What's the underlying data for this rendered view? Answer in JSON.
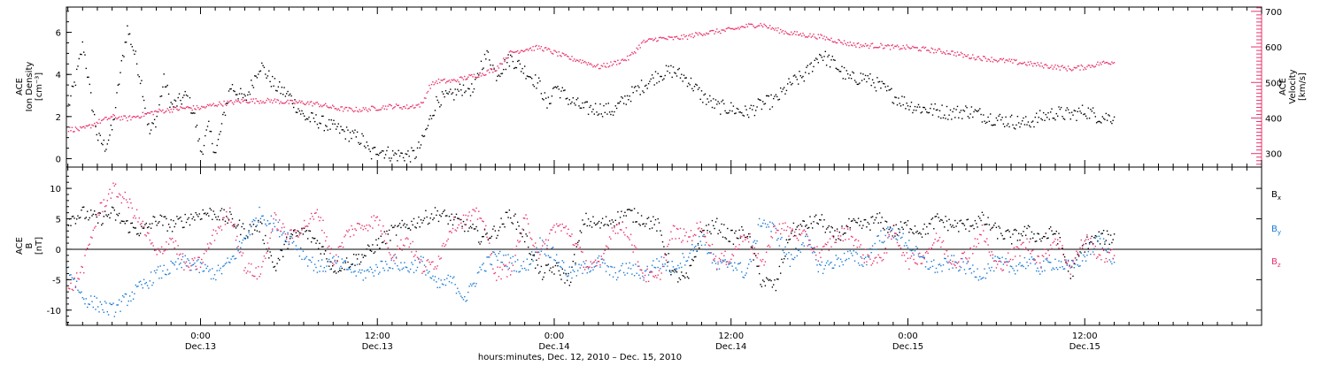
{
  "xaxis": {
    "caption": "hours:minutes, Dec. 12, 2010 – Dec. 15, 2010",
    "ticks": [
      {
        "time": "0:00",
        "date": "Dec.13",
        "hours": 24
      },
      {
        "time": "12:00",
        "date": "Dec.13",
        "hours": 36
      },
      {
        "time": "0:00",
        "date": "Dec.14",
        "hours": 48
      },
      {
        "time": "12:00",
        "date": "Dec.14",
        "hours": 60
      },
      {
        "time": "0:00",
        "date": "Dec.15",
        "hours": 72
      },
      {
        "time": "12:00",
        "date": "Dec.15",
        "hours": 84
      }
    ]
  },
  "colors": {
    "black": "#000000",
    "pink": "#e8336a",
    "blue": "#1a7ad4"
  },
  "chart_data": [
    {
      "type": "scatter",
      "title": "",
      "x_unit": "hours since Dec. 12, 2010 0:00 UT",
      "xlim": [
        14.9,
        96
      ],
      "ylabel_left": [
        "ACE",
        "Ion Density",
        "[cm⁻³]"
      ],
      "ylabel_right": [
        "ACE",
        "Velocity",
        "[km/s]"
      ],
      "ylim_left": [
        -0.4,
        7.2
      ],
      "ylim_right": [
        262,
        712
      ],
      "yticks_left": [
        0,
        2,
        4,
        6
      ],
      "yticks_right": [
        300,
        400,
        500,
        600,
        700
      ],
      "series": [
        {
          "axis": "left",
          "color": "black",
          "x": [
            15.0,
            15.5,
            16.0,
            16.5,
            17.0,
            17.5,
            18.0,
            18.5,
            19.0,
            19.5,
            20.0,
            20.5,
            21.0,
            21.5,
            22.0,
            23.0,
            23.5,
            24.0,
            24.5,
            25.0,
            26.0,
            27.0,
            28.0,
            29.0,
            30.0,
            31.0,
            32.0,
            33.0,
            34.0,
            35.0,
            35.5,
            36.0,
            37.0,
            38.0,
            38.5,
            39.0,
            40.0,
            41.0,
            42.0,
            42.5,
            43.0,
            43.5,
            44.0,
            45.0,
            46.0,
            47.0,
            47.5,
            48.0,
            49.0,
            50.0,
            51.0,
            52.0,
            53.0,
            54.0,
            55.0,
            56.0,
            57.0,
            58.0,
            59.0,
            60.0,
            61.0,
            62.0,
            63.0,
            64.0,
            65.0,
            66.0,
            67.0,
            68.0,
            69.0,
            70.0,
            71.0,
            72.0,
            73.0,
            74.0,
            75.0,
            76.0,
            77.0,
            78.0,
            79.0,
            80.0,
            81.0,
            82.0,
            83.0,
            84.0,
            85.0,
            86.0
          ],
          "y": [
            2.5,
            3.8,
            5.5,
            3.0,
            1.0,
            0.6,
            1.5,
            4.0,
            6.2,
            5.0,
            3.5,
            1.2,
            2.0,
            3.8,
            2.5,
            3.0,
            2.2,
            0.3,
            1.5,
            0.3,
            3.5,
            2.8,
            4.5,
            3.5,
            3.0,
            2.0,
            1.8,
            1.5,
            1.2,
            0.9,
            0.2,
            0.5,
            0.2,
            0.2,
            0.2,
            0.8,
            2.8,
            3.0,
            3.5,
            3.2,
            4.5,
            5.0,
            4.0,
            4.8,
            4.2,
            3.5,
            2.5,
            3.5,
            2.8,
            2.4,
            2.4,
            2.3,
            3.0,
            3.5,
            4.0,
            4.2,
            3.8,
            3.0,
            2.5,
            2.4,
            2.2,
            2.6,
            2.8,
            3.6,
            4.0,
            5.0,
            4.5,
            3.8,
            3.9,
            3.5,
            3.0,
            2.6,
            2.4,
            2.3,
            2.2,
            2.3,
            2.1,
            1.9,
            1.8,
            1.7,
            2.0,
            2.2,
            2.1,
            2.3,
            2.0,
            2.0
          ]
        },
        {
          "axis": "right",
          "color": "pink",
          "x": [
            15.0,
            16.0,
            17.0,
            18.0,
            19.0,
            20.0,
            21.0,
            22.0,
            23.0,
            24.0,
            25.0,
            26.0,
            27.0,
            28.0,
            29.0,
            30.0,
            31.0,
            32.0,
            33.0,
            34.0,
            35.0,
            36.0,
            37.0,
            38.0,
            39.0,
            39.5,
            40.0,
            41.0,
            42.0,
            43.0,
            44.0,
            45.0,
            46.0,
            47.0,
            48.0,
            49.0,
            50.0,
            51.0,
            52.0,
            53.0,
            54.0,
            55.0,
            56.0,
            57.0,
            58.0,
            59.0,
            60.0,
            61.0,
            62.0,
            63.0,
            64.0,
            65.0,
            66.0,
            67.0,
            68.0,
            69.0,
            70.0,
            71.0,
            72.0,
            73.0,
            74.0,
            75.0,
            76.0,
            77.0,
            78.0,
            79.0,
            80.0,
            81.0,
            82.0,
            83.0,
            84.0,
            85.0,
            86.0
          ],
          "y": [
            370,
            370,
            390,
            405,
            400,
            410,
            420,
            425,
            430,
            430,
            440,
            445,
            450,
            450,
            450,
            445,
            445,
            440,
            430,
            425,
            425,
            430,
            435,
            432,
            440,
            490,
            505,
            505,
            515,
            525,
            540,
            585,
            595,
            600,
            585,
            570,
            560,
            545,
            555,
            570,
            615,
            625,
            625,
            630,
            640,
            645,
            650,
            660,
            665,
            650,
            640,
            635,
            630,
            620,
            610,
            605,
            605,
            600,
            600,
            595,
            590,
            585,
            575,
            570,
            565,
            560,
            555,
            550,
            545,
            540,
            545,
            555,
            560
          ]
        }
      ]
    },
    {
      "type": "scatter",
      "title": "",
      "x_unit": "hours since Dec. 12, 2010 0:00 UT",
      "xlim": [
        14.9,
        96
      ],
      "ylabel_left": [
        "ACE",
        "B",
        "[nT]"
      ],
      "ylim": [
        -12.5,
        13.5
      ],
      "yticks": [
        -10,
        -5,
        0,
        5,
        10
      ],
      "zero_line": true,
      "legend_position": "right",
      "series": [
        {
          "name": "Bx",
          "color": "black",
          "x": [
            15,
            16,
            17,
            18,
            19,
            20,
            21,
            22,
            23,
            24,
            25,
            26,
            27,
            28,
            29,
            30,
            31,
            32,
            33,
            34,
            35,
            36,
            37,
            38,
            39,
            40,
            41,
            42,
            43,
            44,
            45,
            46,
            47,
            48,
            49,
            50,
            51,
            52,
            53,
            54,
            55,
            56,
            57,
            58,
            59,
            60,
            61,
            62,
            63,
            64,
            65,
            66,
            67,
            68,
            69,
            70,
            71,
            72,
            73,
            74,
            75,
            76,
            77,
            78,
            79,
            80,
            81,
            82,
            83,
            84,
            85,
            86
          ],
          "y": [
            5,
            6,
            5,
            6,
            4,
            3,
            5,
            4,
            5,
            6,
            6,
            5,
            3,
            4,
            -3,
            2,
            3,
            1,
            -3,
            -2,
            -1,
            1,
            3,
            4,
            5,
            6,
            5,
            4,
            2,
            3,
            6,
            2,
            -4,
            -3,
            -5,
            5,
            4,
            5,
            6,
            5,
            4,
            -4,
            -5,
            3,
            4,
            2,
            3,
            -5,
            -6,
            3,
            4,
            5,
            2,
            4,
            4,
            5,
            3,
            4,
            3,
            5,
            4,
            4,
            5,
            3,
            2,
            3,
            2,
            3,
            -4,
            1,
            2,
            2
          ]
        },
        {
          "name": "By",
          "color": "blue",
          "x": [
            15,
            16,
            17,
            18,
            19,
            20,
            21,
            22,
            23,
            24,
            25,
            26,
            27,
            28,
            29,
            30,
            31,
            32,
            33,
            34,
            35,
            36,
            37,
            38,
            39,
            40,
            41,
            42,
            43,
            44,
            45,
            46,
            47,
            48,
            49,
            50,
            51,
            52,
            53,
            54,
            55,
            56,
            57,
            58,
            59,
            60,
            61,
            62,
            63,
            64,
            65,
            66,
            67,
            68,
            69,
            70,
            71,
            72,
            73,
            74,
            75,
            76,
            77,
            78,
            79,
            80,
            81,
            82,
            83,
            84,
            85,
            86
          ],
          "y": [
            -3,
            -8,
            -9,
            -10,
            -8,
            -6,
            -4,
            -3,
            -2,
            -3,
            -4,
            -2,
            2,
            6,
            4,
            2,
            -1,
            -3,
            -2,
            -3,
            -4,
            -3,
            -2,
            -3,
            -2,
            -6,
            -5,
            -8,
            -3,
            -1,
            -2,
            -3,
            1,
            -1,
            -4,
            -3,
            -2,
            -4,
            -3,
            -4,
            -2,
            -3,
            -1,
            2,
            -3,
            -2,
            -4,
            5,
            3,
            -2,
            2,
            -3,
            -2,
            -1,
            -2,
            2,
            3,
            1,
            -2,
            -3,
            -2,
            -3,
            -4,
            -2,
            -3,
            -2,
            -3,
            -2,
            -3,
            -1,
            2,
            -2
          ]
        },
        {
          "name": "Bz",
          "color": "pink",
          "x": [
            15,
            16,
            17,
            18,
            19,
            20,
            21,
            22,
            23,
            24,
            25,
            26,
            27,
            28,
            29,
            30,
            31,
            32,
            33,
            34,
            35,
            36,
            37,
            38,
            39,
            40,
            41,
            42,
            43,
            44,
            45,
            46,
            47,
            48,
            49,
            50,
            51,
            52,
            53,
            54,
            55,
            56,
            57,
            58,
            59,
            60,
            61,
            62,
            63,
            64,
            65,
            66,
            67,
            68,
            69,
            70,
            71,
            72,
            73,
            74,
            75,
            76,
            77,
            78,
            79,
            80,
            81,
            82,
            83,
            84,
            85,
            86
          ],
          "y": [
            -7,
            -3,
            6,
            10,
            8,
            4,
            -1,
            2,
            -3,
            -2,
            3,
            6,
            -3,
            -4,
            5,
            2,
            4,
            6,
            -2,
            3,
            4,
            5,
            -1,
            2,
            -3,
            -2,
            4,
            5,
            6,
            -4,
            -3,
            5,
            -1,
            4,
            3,
            -2,
            -3,
            4,
            3,
            -4,
            -5,
            3,
            2,
            4,
            -2,
            -1,
            3,
            -3,
            4,
            3,
            2,
            -1,
            2,
            3,
            -1,
            -2,
            3,
            -2,
            -1,
            2,
            -2,
            -1,
            3,
            -3,
            -1,
            1,
            -2,
            2,
            -3,
            2,
            -1,
            -1
          ]
        }
      ]
    }
  ]
}
